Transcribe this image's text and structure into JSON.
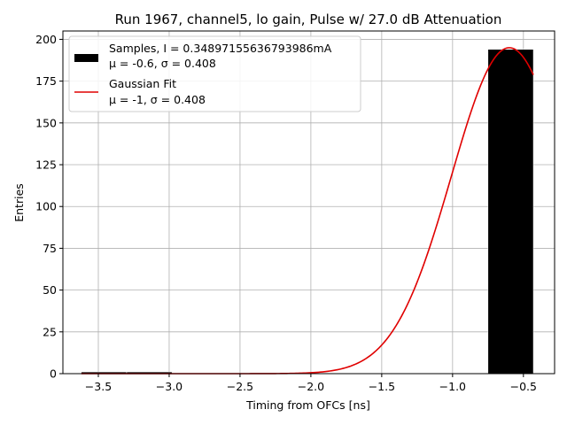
{
  "chart_data": {
    "type": "bar",
    "title": "Run 1967, channel5, lo gain, Pulse w/ 27.0 dB Attenuation",
    "xlabel": "Timing from OFCs [ns]",
    "ylabel": "Entries",
    "xlim": [
      -3.75,
      -0.28
    ],
    "ylim": [
      0,
      205
    ],
    "xticks": [
      -3.5,
      -3.0,
      -2.5,
      -2.0,
      -1.5,
      -1.0,
      -0.5
    ],
    "xtick_labels": [
      "−3.5",
      "−3.0",
      "−2.5",
      "−2.0",
      "−1.5",
      "−1.0",
      "−0.5"
    ],
    "yticks": [
      0,
      25,
      50,
      75,
      100,
      125,
      150,
      175,
      200
    ],
    "ytick_labels": [
      "0",
      "25",
      "50",
      "75",
      "100",
      "125",
      "150",
      "175",
      "200"
    ],
    "grid": true,
    "legend_position": "top-left",
    "bars": [
      {
        "x0": -3.62,
        "x1": -3.3,
        "value": 1
      },
      {
        "x0": -3.3,
        "x1": -2.98,
        "value": 1
      },
      {
        "x0": -0.75,
        "x1": -0.43,
        "value": 194
      }
    ],
    "bar_color": "#000000",
    "fit": {
      "name": "Gaussian Fit",
      "mu": -0.6,
      "sigma": 0.408,
      "amplitude": 195,
      "x_range": [
        -3.62,
        -0.43
      ],
      "color": "#e00000"
    },
    "legend": [
      {
        "label_line1": "Samples, I = 0.34897155636793986mA",
        "label_line2": "μ = -0.6, σ = 0.408",
        "kind": "bar",
        "color": "#000000"
      },
      {
        "label_line1": "Gaussian Fit",
        "label_line2": "μ = -1, σ = 0.408",
        "kind": "line",
        "color": "#e00000"
      }
    ]
  }
}
